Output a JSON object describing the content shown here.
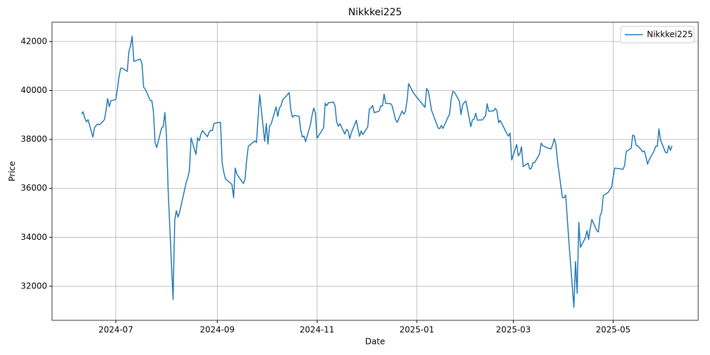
{
  "chart_data": {
    "type": "line",
    "title": "Nikkkei225",
    "xlabel": "Date",
    "ylabel": "Price",
    "x": [
      "2024-06-10",
      "2024-06-11",
      "2024-06-12",
      "2024-06-13",
      "2024-06-14",
      "2024-06-17",
      "2024-06-18",
      "2024-06-19",
      "2024-06-20",
      "2024-06-21",
      "2024-06-24",
      "2024-06-25",
      "2024-06-26",
      "2024-06-27",
      "2024-06-28",
      "2024-07-01",
      "2024-07-02",
      "2024-07-03",
      "2024-07-04",
      "2024-07-05",
      "2024-07-08",
      "2024-07-09",
      "2024-07-10",
      "2024-07-11",
      "2024-07-12",
      "2024-07-16",
      "2024-07-17",
      "2024-07-18",
      "2024-07-19",
      "2024-07-22",
      "2024-07-23",
      "2024-07-24",
      "2024-07-25",
      "2024-07-26",
      "2024-07-29",
      "2024-07-30",
      "2024-07-31",
      "2024-08-01",
      "2024-08-02",
      "2024-08-05",
      "2024-08-06",
      "2024-08-07",
      "2024-08-08",
      "2024-08-09",
      "2024-08-13",
      "2024-08-14",
      "2024-08-15",
      "2024-08-16",
      "2024-08-19",
      "2024-08-20",
      "2024-08-21",
      "2024-08-22",
      "2024-08-23",
      "2024-08-26",
      "2024-08-27",
      "2024-08-28",
      "2024-08-29",
      "2024-08-30",
      "2024-09-02",
      "2024-09-03",
      "2024-09-04",
      "2024-09-05",
      "2024-09-06",
      "2024-09-09",
      "2024-09-10",
      "2024-09-11",
      "2024-09-12",
      "2024-09-13",
      "2024-09-17",
      "2024-09-18",
      "2024-09-19",
      "2024-09-20",
      "2024-09-24",
      "2024-09-25",
      "2024-09-26",
      "2024-09-27",
      "2024-09-30",
      "2024-10-01",
      "2024-10-02",
      "2024-10-03",
      "2024-10-04",
      "2024-10-07",
      "2024-10-08",
      "2024-10-09",
      "2024-10-10",
      "2024-10-11",
      "2024-10-15",
      "2024-10-16",
      "2024-10-17",
      "2024-10-18",
      "2024-10-21",
      "2024-10-22",
      "2024-10-23",
      "2024-10-24",
      "2024-10-25",
      "2024-10-28",
      "2024-10-29",
      "2024-10-30",
      "2024-10-31",
      "2024-11-01",
      "2024-11-05",
      "2024-11-06",
      "2024-11-07",
      "2024-11-08",
      "2024-11-11",
      "2024-11-12",
      "2024-11-13",
      "2024-11-14",
      "2024-11-15",
      "2024-11-18",
      "2024-11-19",
      "2024-11-20",
      "2024-11-21",
      "2024-11-22",
      "2024-11-25",
      "2024-11-26",
      "2024-11-27",
      "2024-11-28",
      "2024-11-29",
      "2024-12-02",
      "2024-12-03",
      "2024-12-04",
      "2024-12-05",
      "2024-12-06",
      "2024-12-09",
      "2024-12-10",
      "2024-12-11",
      "2024-12-12",
      "2024-12-13",
      "2024-12-16",
      "2024-12-17",
      "2024-12-18",
      "2024-12-19",
      "2024-12-20",
      "2024-12-23",
      "2024-12-24",
      "2024-12-25",
      "2024-12-26",
      "2024-12-27",
      "2024-12-30",
      "2025-01-06",
      "2025-01-07",
      "2025-01-08",
      "2025-01-09",
      "2025-01-10",
      "2025-01-14",
      "2025-01-15",
      "2025-01-16",
      "2025-01-17",
      "2025-01-20",
      "2025-01-21",
      "2025-01-22",
      "2025-01-23",
      "2025-01-24",
      "2025-01-27",
      "2025-01-28",
      "2025-01-29",
      "2025-01-30",
      "2025-01-31",
      "2025-02-03",
      "2025-02-04",
      "2025-02-05",
      "2025-02-06",
      "2025-02-07",
      "2025-02-10",
      "2025-02-12",
      "2025-02-13",
      "2025-02-14",
      "2025-02-17",
      "2025-02-18",
      "2025-02-19",
      "2025-02-20",
      "2025-02-21",
      "2025-02-25",
      "2025-02-26",
      "2025-02-27",
      "2025-02-28",
      "2025-03-03",
      "2025-03-04",
      "2025-03-05",
      "2025-03-06",
      "2025-03-07",
      "2025-03-10",
      "2025-03-11",
      "2025-03-12",
      "2025-03-13",
      "2025-03-14",
      "2025-03-17",
      "2025-03-18",
      "2025-03-19",
      "2025-03-21",
      "2025-03-24",
      "2025-03-25",
      "2025-03-26",
      "2025-03-27",
      "2025-03-28",
      "2025-03-31",
      "2025-04-01",
      "2025-04-02",
      "2025-04-03",
      "2025-04-04",
      "2025-04-07",
      "2025-04-08",
      "2025-04-09",
      "2025-04-10",
      "2025-04-11",
      "2025-04-14",
      "2025-04-15",
      "2025-04-16",
      "2025-04-17",
      "2025-04-18",
      "2025-04-21",
      "2025-04-22",
      "2025-04-23",
      "2025-04-24",
      "2025-04-25",
      "2025-04-28",
      "2025-04-30",
      "2025-05-01",
      "2025-05-02",
      "2025-05-07",
      "2025-05-08",
      "2025-05-09",
      "2025-05-12",
      "2025-05-13",
      "2025-05-14",
      "2025-05-15",
      "2025-05-16",
      "2025-05-19",
      "2025-05-20",
      "2025-05-21",
      "2025-05-22",
      "2025-05-23",
      "2025-05-26",
      "2025-05-27",
      "2025-05-28",
      "2025-05-29",
      "2025-05-30",
      "2025-06-02",
      "2025-06-03",
      "2025-06-04",
      "2025-06-05",
      "2025-06-06"
    ],
    "series": [
      {
        "name": "Nikkkei225",
        "color": "#1f77b4",
        "values": [
          39040,
          39130,
          38880,
          38720,
          38810,
          38100,
          38480,
          38570,
          38630,
          38600,
          38800,
          39170,
          39670,
          39340,
          39580,
          39630,
          40070,
          40580,
          40910,
          40910,
          40780,
          41580,
          41830,
          42220,
          41190,
          41280,
          41100,
          40130,
          40060,
          39600,
          39590,
          39150,
          37870,
          37670,
          38470,
          38530,
          39100,
          38130,
          35910,
          31460,
          34680,
          35090,
          34830,
          35030,
          36230,
          36440,
          36730,
          38060,
          37390,
          38060,
          37950,
          38210,
          38360,
          38110,
          38290,
          38370,
          38360,
          38650,
          38700,
          38690,
          37050,
          36660,
          36390,
          36220,
          36160,
          35620,
          36830,
          36580,
          36200,
          36380,
          37160,
          37720,
          37940,
          37870,
          38930,
          39830,
          37920,
          38650,
          37810,
          38550,
          38640,
          39330,
          38940,
          39280,
          39380,
          39610,
          39910,
          39180,
          38910,
          38980,
          38950,
          38410,
          38100,
          38140,
          37910,
          38610,
          39000,
          39280,
          39080,
          38050,
          38470,
          39480,
          39380,
          39500,
          39530,
          39380,
          38720,
          38540,
          38640,
          38220,
          38410,
          38350,
          38030,
          38280,
          38780,
          38440,
          38130,
          38350,
          38200,
          38510,
          39250,
          39280,
          39390,
          39090,
          39160,
          39370,
          39370,
          39850,
          39470,
          39460,
          39360,
          39080,
          38810,
          38700,
          39160,
          39040,
          39130,
          39570,
          40280,
          39890,
          39310,
          40080,
          39980,
          39600,
          39190,
          38470,
          38440,
          38570,
          38450,
          38900,
          39030,
          39650,
          39960,
          39930,
          39570,
          39020,
          39410,
          39510,
          39570,
          38520,
          38800,
          38830,
          39070,
          38790,
          38800,
          38960,
          39460,
          39150,
          39170,
          39270,
          39160,
          38680,
          38780,
          38240,
          38140,
          38260,
          37160,
          37790,
          37330,
          37420,
          37700,
          36890,
          37030,
          36790,
          36820,
          37050,
          37050,
          37400,
          37850,
          37750,
          37680,
          37610,
          37780,
          38030,
          37800,
          37120,
          35620,
          35620,
          35730,
          34740,
          33780,
          31140,
          33010,
          31710,
          34610,
          33590,
          33980,
          34270,
          33920,
          34380,
          34730,
          34280,
          34220,
          34870,
          35040,
          35710,
          35840,
          36050,
          36450,
          36830,
          36780,
          36930,
          37500,
          37640,
          38180,
          38130,
          37760,
          37750,
          37500,
          37530,
          37300,
          36990,
          37160,
          37530,
          37720,
          37720,
          38430,
          37970,
          37470,
          37450,
          37750,
          37550,
          37740
        ]
      }
    ],
    "xlim": [
      "2024-05-23",
      "2025-06-22"
    ],
    "xticks": [
      {
        "value": "2024-07-01",
        "label": "2024-07"
      },
      {
        "value": "2024-09-01",
        "label": "2024-09"
      },
      {
        "value": "2024-11-01",
        "label": "2024-11"
      },
      {
        "value": "2025-01-01",
        "label": "2025-01"
      },
      {
        "value": "2025-03-01",
        "label": "2025-03"
      },
      {
        "value": "2025-05-01",
        "label": "2025-05"
      }
    ],
    "ylim": [
      30610,
      42790
    ],
    "yticks": [
      32000,
      34000,
      36000,
      38000,
      40000,
      42000
    ],
    "grid": true,
    "legend": "upper right"
  }
}
